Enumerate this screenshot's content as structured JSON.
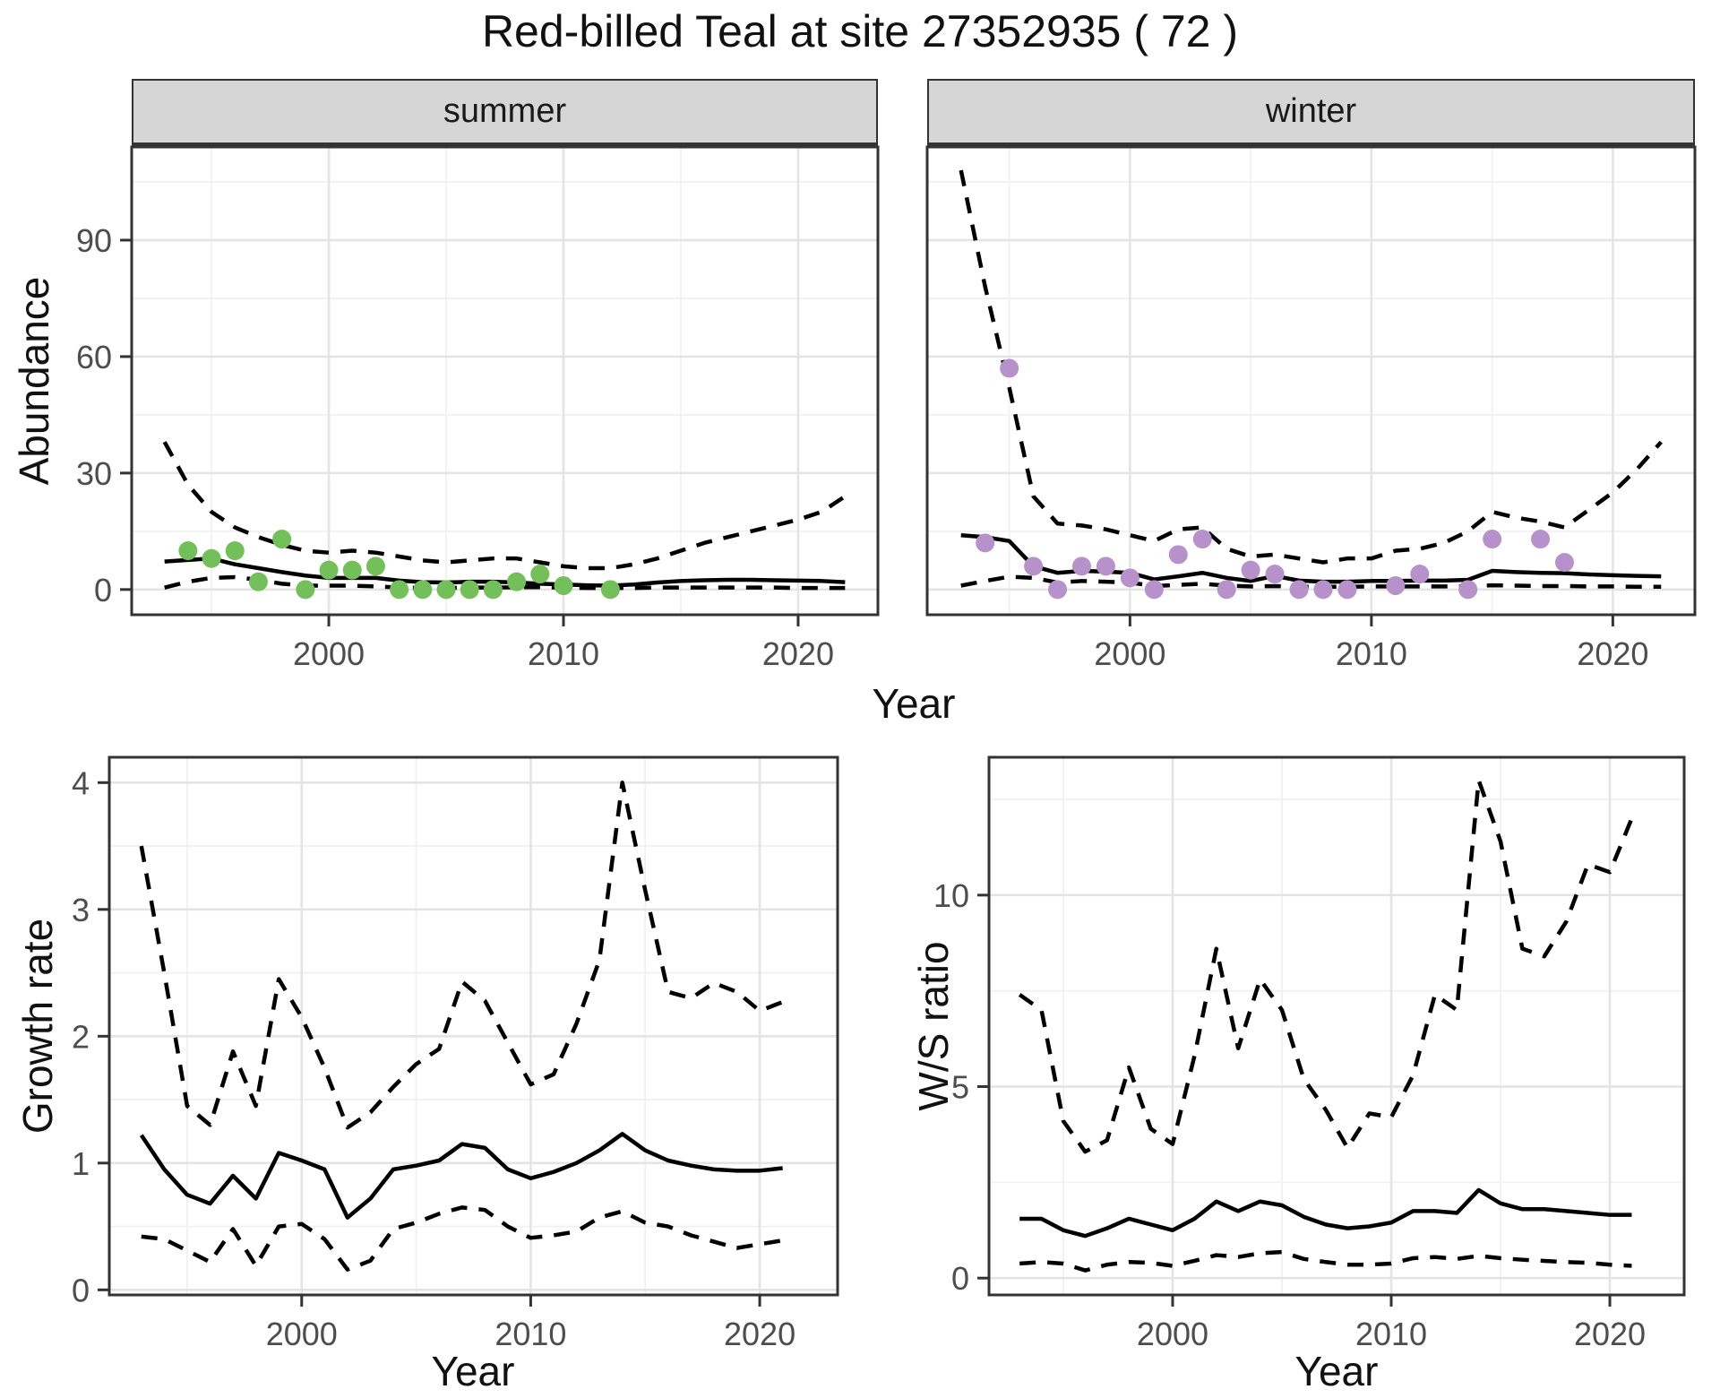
{
  "title": "Red-billed Teal at site 27352935 ( 72 )",
  "facets": {
    "summer": "summer",
    "winter": "winter"
  },
  "axis_titles": {
    "x": "Year",
    "abundance": "Abundance",
    "growth": "Growth rate",
    "ws": "W/S ratio"
  },
  "colors": {
    "summer_points": "#73bf59",
    "winter_points": "#b791c9",
    "line": "#000000",
    "strip_bg": "#d6d6d6",
    "panel_border": "#333333",
    "grid_major": "#e4e4e4",
    "grid_minor": "#f1f1f1",
    "tick_text": "#4d4d4d"
  },
  "chart_data": [
    {
      "id": "abundance_summer",
      "type": "line",
      "facet_label": "summer",
      "xlabel": "Year",
      "ylabel": "Abundance",
      "xlim": [
        1991.6,
        2023.4
      ],
      "ylim": [
        -6.5,
        114
      ],
      "xticks": [
        2000,
        2010,
        2020
      ],
      "yticks": [
        0,
        30,
        60,
        90
      ],
      "x_minor": [
        1995,
        2005,
        2015
      ],
      "y_minor": [
        15,
        45,
        75,
        105
      ],
      "grid": true,
      "legend_position": "none",
      "points": {
        "color": "#73bf59",
        "x": [
          1994,
          1995,
          1996,
          1997,
          1998,
          1999,
          2000,
          2001,
          2002,
          2003,
          2004,
          2005,
          2006,
          2007,
          2008,
          2009,
          2010,
          2012
        ],
        "y": [
          10,
          8,
          10,
          2,
          13,
          0,
          5,
          5,
          6,
          0,
          0,
          0,
          0,
          0,
          2,
          4,
          1,
          0
        ]
      },
      "series": [
        {
          "name": "fitted abundance",
          "style": "solid",
          "x": [
            1993,
            1994,
            1995,
            1996,
            1997,
            1998,
            1999,
            2000,
            2001,
            2002,
            2003,
            2004,
            2005,
            2006,
            2007,
            2008,
            2009,
            2010,
            2011,
            2012,
            2013,
            2014,
            2015,
            2016,
            2017,
            2018,
            2019,
            2020,
            2021,
            2022
          ],
          "y": [
            7.2,
            7.6,
            8.0,
            6.5,
            5.5,
            4.5,
            3.6,
            3.0,
            3.0,
            3.0,
            2.3,
            1.9,
            1.8,
            2.0,
            2.0,
            1.8,
            1.5,
            1.3,
            1.1,
            1.0,
            1.3,
            1.8,
            2.2,
            2.4,
            2.5,
            2.5,
            2.4,
            2.3,
            2.2,
            1.9
          ]
        },
        {
          "name": "upper 95% CI",
          "style": "dashed",
          "x": [
            1993,
            1994,
            1995,
            1996,
            1997,
            1998,
            1999,
            2000,
            2001,
            2002,
            2003,
            2004,
            2005,
            2006,
            2007,
            2008,
            2009,
            2010,
            2011,
            2012,
            2013,
            2014,
            2015,
            2016,
            2017,
            2018,
            2019,
            2020,
            2021,
            2022
          ],
          "y": [
            38,
            27,
            20,
            16,
            13.5,
            11.5,
            10,
            9.5,
            10,
            9.5,
            8.5,
            7.5,
            7,
            7.5,
            8,
            8,
            7,
            6,
            5.5,
            5.5,
            6.5,
            8,
            10,
            12,
            13.5,
            15,
            16.5,
            18,
            20,
            24
          ]
        },
        {
          "name": "lower 95% CI",
          "style": "dashed",
          "x": [
            1993,
            1994,
            1995,
            1996,
            1997,
            1998,
            1999,
            2000,
            2001,
            2002,
            2003,
            2004,
            2005,
            2006,
            2007,
            2008,
            2009,
            2010,
            2011,
            2012,
            2013,
            2014,
            2015,
            2016,
            2017,
            2018,
            2019,
            2020,
            2021,
            2022
          ],
          "y": [
            0.5,
            2,
            3,
            3.2,
            2.5,
            1.5,
            1,
            1,
            1,
            0.8,
            0.5,
            0.4,
            0.4,
            0.5,
            0.5,
            0.6,
            0.6,
            0.5,
            0.4,
            0.4,
            0.4,
            0.5,
            0.5,
            0.5,
            0.5,
            0.5,
            0.5,
            0.4,
            0.4,
            0.4
          ]
        }
      ]
    },
    {
      "id": "abundance_winter",
      "type": "line",
      "facet_label": "winter",
      "xlabel": "Year",
      "ylabel": "Abundance",
      "xlim": [
        1991.6,
        2023.4
      ],
      "ylim": [
        -6.5,
        114
      ],
      "xticks": [
        2000,
        2010,
        2020
      ],
      "yticks": [
        0,
        30,
        60,
        90
      ],
      "x_minor": [
        1995,
        2005,
        2015
      ],
      "y_minor": [
        15,
        45,
        75,
        105
      ],
      "grid": true,
      "legend_position": "none",
      "points": {
        "color": "#b791c9",
        "x": [
          1994,
          1995,
          1996,
          1997,
          1998,
          1999,
          2000,
          2001,
          2002,
          2003,
          2004,
          2005,
          2006,
          2007,
          2008,
          2009,
          2011,
          2012,
          2014,
          2015,
          2017,
          2018
        ],
        "y": [
          12,
          57,
          6,
          0,
          6,
          6,
          3,
          0,
          9,
          13,
          0,
          5,
          4,
          0,
          0,
          0,
          1,
          4,
          0,
          13,
          13,
          7
        ]
      },
      "series": [
        {
          "name": "fitted abundance",
          "style": "solid",
          "x": [
            1993,
            1994,
            1995,
            1996,
            1997,
            1998,
            1999,
            2000,
            2001,
            2002,
            2003,
            2004,
            2005,
            2006,
            2007,
            2008,
            2009,
            2010,
            2011,
            2012,
            2013,
            2014,
            2015,
            2016,
            2017,
            2018,
            2019,
            2020,
            2021,
            2022
          ],
          "y": [
            14,
            13.5,
            12.5,
            6,
            4.3,
            4.8,
            4.6,
            4.3,
            2.6,
            3.4,
            4.3,
            3,
            2.2,
            3.5,
            2.3,
            2,
            2,
            2.2,
            2.2,
            2.3,
            2.3,
            2.5,
            4.8,
            4.5,
            4.3,
            4.2,
            3.9,
            3.7,
            3.5,
            3.4
          ]
        },
        {
          "name": "upper 95% CI",
          "style": "dashed",
          "x": [
            1993,
            1994,
            1995,
            1996,
            1997,
            1998,
            1999,
            2000,
            2001,
            2002,
            2003,
            2004,
            2005,
            2006,
            2007,
            2008,
            2009,
            2010,
            2011,
            2012,
            2013,
            2014,
            2015,
            2016,
            2017,
            2018,
            2019,
            2020,
            2021,
            2022
          ],
          "y": [
            108,
            78,
            52,
            24,
            17,
            16.5,
            15.5,
            14,
            12.5,
            15.5,
            16,
            10.5,
            8.5,
            9,
            8,
            7,
            8,
            8,
            10,
            10.5,
            12,
            15,
            20,
            18.5,
            17.5,
            16,
            20.5,
            25,
            31,
            38
          ]
        },
        {
          "name": "lower 95% CI",
          "style": "dashed",
          "x": [
            1993,
            1994,
            1995,
            1996,
            1997,
            1998,
            1999,
            2000,
            2001,
            2002,
            2003,
            2004,
            2005,
            2006,
            2007,
            2008,
            2009,
            2010,
            2011,
            2012,
            2013,
            2014,
            2015,
            2016,
            2017,
            2018,
            2019,
            2020,
            2021,
            2022
          ],
          "y": [
            1,
            2.2,
            3.3,
            3,
            1.8,
            2.2,
            2,
            1.8,
            0.9,
            1.2,
            1.5,
            1,
            0.8,
            0.9,
            0.7,
            0.7,
            0.7,
            0.8,
            0.8,
            0.8,
            0.8,
            0.8,
            1.1,
            1,
            0.9,
            0.9,
            0.8,
            0.8,
            0.7,
            0.7
          ]
        }
      ]
    },
    {
      "id": "growth_rate",
      "type": "line",
      "xlabel": "Year",
      "ylabel": "Growth rate",
      "xlim": [
        1991.6,
        2023.4
      ],
      "ylim": [
        -0.04,
        4.2
      ],
      "xticks": [
        2000,
        2010,
        2020
      ],
      "yticks": [
        0,
        1,
        2,
        3,
        4
      ],
      "x_minor": [
        1995,
        2005,
        2015
      ],
      "y_minor": [
        0.5,
        1.5,
        2.5,
        3.5
      ],
      "grid": true,
      "legend_position": "none",
      "series": [
        {
          "name": "growth rate",
          "style": "solid",
          "x": [
            1993,
            1994,
            1995,
            1996,
            1997,
            1998,
            1999,
            2000,
            2001,
            2002,
            2003,
            2004,
            2005,
            2006,
            2007,
            2008,
            2009,
            2010,
            2011,
            2012,
            2013,
            2014,
            2015,
            2016,
            2017,
            2018,
            2019,
            2020,
            2021
          ],
          "y": [
            1.22,
            0.95,
            0.75,
            0.68,
            0.9,
            0.72,
            1.08,
            1.02,
            0.95,
            0.57,
            0.72,
            0.95,
            0.98,
            1.02,
            1.15,
            1.12,
            0.95,
            0.88,
            0.93,
            1.0,
            1.1,
            1.23,
            1.1,
            1.02,
            0.98,
            0.95,
            0.94,
            0.94,
            0.96
          ]
        },
        {
          "name": "upper 95% CI",
          "style": "dashed",
          "x": [
            1993,
            1994,
            1995,
            1996,
            1997,
            1998,
            1999,
            2000,
            2001,
            2002,
            2003,
            2004,
            2005,
            2006,
            2007,
            2008,
            2009,
            2010,
            2011,
            2012,
            2013,
            2014,
            2015,
            2016,
            2017,
            2018,
            2019,
            2020,
            2021
          ],
          "y": [
            3.5,
            2.5,
            1.45,
            1.3,
            1.88,
            1.45,
            2.45,
            2.15,
            1.75,
            1.28,
            1.4,
            1.6,
            1.78,
            1.9,
            2.43,
            2.28,
            1.95,
            1.62,
            1.7,
            2.1,
            2.6,
            4.0,
            3.15,
            2.35,
            2.3,
            2.42,
            2.35,
            2.2,
            2.27
          ]
        },
        {
          "name": "lower 95% CI",
          "style": "dashed",
          "x": [
            1993,
            1994,
            1995,
            1996,
            1997,
            1998,
            1999,
            2000,
            2001,
            2002,
            2003,
            2004,
            2005,
            2006,
            2007,
            2008,
            2009,
            2010,
            2011,
            2012,
            2013,
            2014,
            2015,
            2016,
            2017,
            2018,
            2019,
            2020,
            2021
          ],
          "y": [
            0.42,
            0.4,
            0.31,
            0.22,
            0.48,
            0.19,
            0.5,
            0.52,
            0.4,
            0.16,
            0.23,
            0.48,
            0.53,
            0.6,
            0.65,
            0.63,
            0.5,
            0.41,
            0.43,
            0.46,
            0.57,
            0.62,
            0.53,
            0.5,
            0.43,
            0.38,
            0.33,
            0.36,
            0.39
          ]
        }
      ]
    },
    {
      "id": "ws_ratio",
      "type": "line",
      "xlabel": "Year",
      "ylabel": "W/S ratio",
      "xlim": [
        1991.6,
        2023.4
      ],
      "ylim": [
        -0.44,
        13.6
      ],
      "xticks": [
        2000,
        2010,
        2020
      ],
      "yticks": [
        0,
        5,
        10
      ],
      "x_minor": [
        1995,
        2005,
        2015
      ],
      "y_minor": [
        2.5,
        7.5,
        12.5
      ],
      "grid": true,
      "legend_position": "none",
      "series": [
        {
          "name": "winter/summer ratio",
          "style": "solid",
          "x": [
            1993,
            1994,
            1995,
            1996,
            1997,
            1998,
            1999,
            2000,
            2001,
            2002,
            2003,
            2004,
            2005,
            2006,
            2007,
            2008,
            2009,
            2010,
            2011,
            2012,
            2013,
            2014,
            2015,
            2016,
            2017,
            2018,
            2019,
            2020,
            2021
          ],
          "y": [
            1.55,
            1.55,
            1.25,
            1.1,
            1.3,
            1.55,
            1.4,
            1.25,
            1.55,
            2.0,
            1.75,
            2.0,
            1.9,
            1.6,
            1.4,
            1.3,
            1.35,
            1.45,
            1.75,
            1.75,
            1.7,
            2.3,
            1.95,
            1.8,
            1.8,
            1.75,
            1.7,
            1.65,
            1.65
          ]
        },
        {
          "name": "upper 95% CI",
          "style": "dashed",
          "x": [
            1993,
            1994,
            1995,
            1996,
            1997,
            1998,
            1999,
            2000,
            2001,
            2002,
            2003,
            2004,
            2005,
            2006,
            2007,
            2008,
            2009,
            2010,
            2011,
            2012,
            2013,
            2014,
            2015,
            2016,
            2017,
            2018,
            2019,
            2020,
            2021
          ],
          "y": [
            7.4,
            7.0,
            4.1,
            3.3,
            3.6,
            5.5,
            3.9,
            3.5,
            5.8,
            8.6,
            6.0,
            7.8,
            7.0,
            5.2,
            4.4,
            3.4,
            4.3,
            4.2,
            5.3,
            7.4,
            7.0,
            13.0,
            11.4,
            8.6,
            8.4,
            9.3,
            10.8,
            10.6,
            12.0
          ]
        },
        {
          "name": "lower 95% CI",
          "style": "dashed",
          "x": [
            1993,
            1994,
            1995,
            1996,
            1997,
            1998,
            1999,
            2000,
            2001,
            2002,
            2003,
            2004,
            2005,
            2006,
            2007,
            2008,
            2009,
            2010,
            2011,
            2012,
            2013,
            2014,
            2015,
            2016,
            2017,
            2018,
            2019,
            2020,
            2021
          ],
          "y": [
            0.38,
            0.42,
            0.38,
            0.2,
            0.35,
            0.42,
            0.4,
            0.32,
            0.45,
            0.6,
            0.55,
            0.65,
            0.68,
            0.5,
            0.42,
            0.35,
            0.35,
            0.38,
            0.52,
            0.55,
            0.5,
            0.58,
            0.52,
            0.48,
            0.45,
            0.42,
            0.4,
            0.35,
            0.32
          ]
        }
      ]
    }
  ]
}
